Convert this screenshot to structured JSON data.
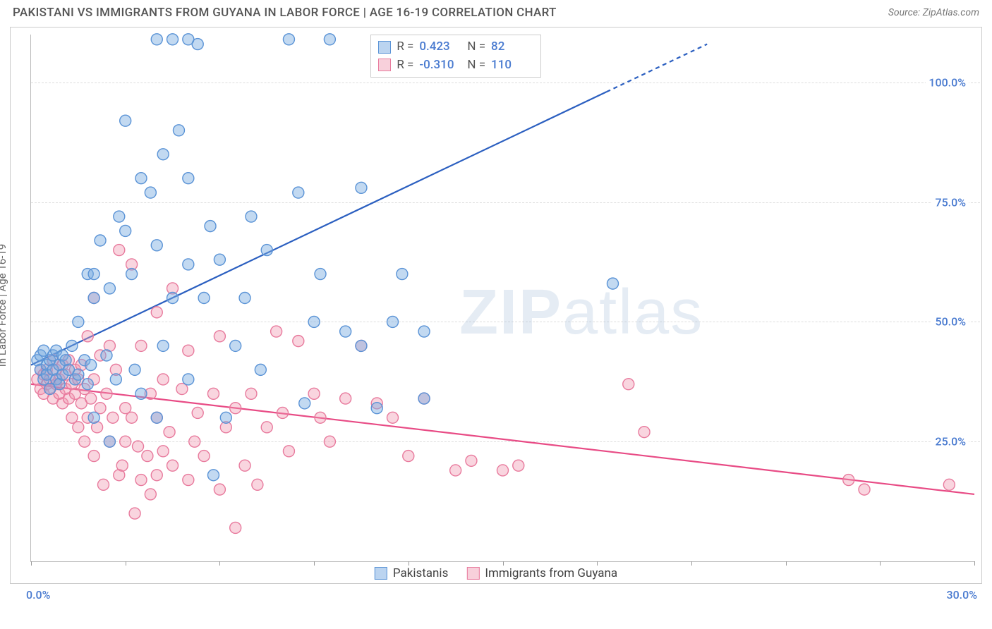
{
  "header": {
    "title": "PAKISTANI VS IMMIGRANTS FROM GUYANA IN LABOR FORCE | AGE 16-19 CORRELATION CHART",
    "source": "Source: ZipAtlas.com"
  },
  "watermark": {
    "part1": "ZIP",
    "part2": "atlas"
  },
  "chart": {
    "type": "scatter",
    "y_axis_label": "In Labor Force | Age 16-19",
    "xlim": [
      0,
      30
    ],
    "ylim": [
      0,
      110
    ],
    "x_tick_positions": [
      0,
      3,
      6,
      9,
      12,
      15,
      18,
      21,
      24,
      27,
      30
    ],
    "y_gridlines": [
      25,
      50,
      75,
      100
    ],
    "y_tick_labels": [
      "25.0%",
      "50.0%",
      "75.0%",
      "100.0%"
    ],
    "x_min_label": "0.0%",
    "x_max_label": "30.0%",
    "background_color": "#ffffff",
    "grid_color": "#dddddd",
    "axis_color": "#bbbbbb",
    "label_color": "#4a7bd0",
    "marker_radius": 8,
    "marker_stroke_width": 1.4,
    "line_width": 2.2,
    "series": [
      {
        "name": "Pakistanis",
        "color_fill": "rgba(120,170,225,0.45)",
        "color_stroke": "#5a93d6",
        "line_color": "#2b5fc0",
        "R": "0.423",
        "N": "82",
        "regression": {
          "x1": 0,
          "y1": 41,
          "x2": 21.5,
          "y2": 108,
          "dash_from_x": 18.3
        },
        "points": [
          [
            0.2,
            42
          ],
          [
            0.3,
            40
          ],
          [
            0.3,
            43
          ],
          [
            0.4,
            38
          ],
          [
            0.4,
            44
          ],
          [
            0.5,
            41
          ],
          [
            0.5,
            39
          ],
          [
            0.6,
            42
          ],
          [
            0.6,
            36
          ],
          [
            0.7,
            43
          ],
          [
            0.7,
            40
          ],
          [
            0.8,
            38
          ],
          [
            0.8,
            44
          ],
          [
            0.9,
            41
          ],
          [
            0.9,
            37
          ],
          [
            1.0,
            43
          ],
          [
            1.0,
            39
          ],
          [
            1.1,
            42
          ],
          [
            1.2,
            40
          ],
          [
            1.3,
            45
          ],
          [
            1.4,
            38
          ],
          [
            1.5,
            50
          ],
          [
            1.5,
            39
          ],
          [
            1.7,
            42
          ],
          [
            1.8,
            37
          ],
          [
            1.8,
            60
          ],
          [
            1.9,
            41
          ],
          [
            2.0,
            55
          ],
          [
            2.0,
            30
          ],
          [
            2.0,
            60
          ],
          [
            2.2,
            67
          ],
          [
            2.4,
            43
          ],
          [
            2.5,
            57
          ],
          [
            2.5,
            25
          ],
          [
            2.7,
            38
          ],
          [
            2.8,
            72
          ],
          [
            3.0,
            92
          ],
          [
            3.0,
            69
          ],
          [
            3.2,
            60
          ],
          [
            3.3,
            40
          ],
          [
            3.5,
            80
          ],
          [
            3.5,
            35
          ],
          [
            3.8,
            77
          ],
          [
            4.0,
            66
          ],
          [
            4.0,
            30
          ],
          [
            4.2,
            85
          ],
          [
            4.2,
            45
          ],
          [
            4.5,
            109
          ],
          [
            4.5,
            55
          ],
          [
            4.7,
            90
          ],
          [
            5.0,
            62
          ],
          [
            5.0,
            80
          ],
          [
            5.0,
            38
          ],
          [
            5.3,
            108
          ],
          [
            5.5,
            55
          ],
          [
            5.7,
            70
          ],
          [
            5.8,
            18
          ],
          [
            6.0,
            63
          ],
          [
            6.2,
            30
          ],
          [
            6.5,
            45
          ],
          [
            6.8,
            55
          ],
          [
            7.0,
            72
          ],
          [
            7.3,
            40
          ],
          [
            7.5,
            65
          ],
          [
            8.2,
            109
          ],
          [
            8.5,
            77
          ],
          [
            8.7,
            33
          ],
          [
            9.0,
            50
          ],
          [
            9.2,
            60
          ],
          [
            9.5,
            109
          ],
          [
            10.0,
            48
          ],
          [
            10.5,
            45
          ],
          [
            10.5,
            78
          ],
          [
            11.0,
            32
          ],
          [
            11.5,
            50
          ],
          [
            11.8,
            60
          ],
          [
            12.5,
            48
          ],
          [
            12.5,
            34
          ],
          [
            18.5,
            58
          ],
          [
            4.0,
            109
          ],
          [
            5.0,
            109
          ]
        ]
      },
      {
        "name": "Immigrants from Guyana",
        "color_fill": "rgba(240,150,175,0.40)",
        "color_stroke": "#e87a9d",
        "line_color": "#e84b85",
        "R": "-0.310",
        "N": "110",
        "regression": {
          "x1": 0,
          "y1": 37,
          "x2": 30,
          "y2": 14
        },
        "points": [
          [
            0.2,
            38
          ],
          [
            0.3,
            40
          ],
          [
            0.3,
            36
          ],
          [
            0.4,
            39
          ],
          [
            0.4,
            35
          ],
          [
            0.5,
            37
          ],
          [
            0.5,
            40
          ],
          [
            0.6,
            36
          ],
          [
            0.6,
            38
          ],
          [
            0.7,
            42
          ],
          [
            0.7,
            34
          ],
          [
            0.8,
            37
          ],
          [
            0.8,
            40
          ],
          [
            0.9,
            35
          ],
          [
            0.9,
            38
          ],
          [
            1.0,
            41
          ],
          [
            1.0,
            33
          ],
          [
            1.1,
            36
          ],
          [
            1.1,
            39
          ],
          [
            1.2,
            42
          ],
          [
            1.2,
            34
          ],
          [
            1.3,
            37
          ],
          [
            1.3,
            30
          ],
          [
            1.4,
            40
          ],
          [
            1.4,
            35
          ],
          [
            1.5,
            38
          ],
          [
            1.5,
            28
          ],
          [
            1.6,
            41
          ],
          [
            1.6,
            33
          ],
          [
            1.7,
            36
          ],
          [
            1.7,
            25
          ],
          [
            1.8,
            47
          ],
          [
            1.8,
            30
          ],
          [
            1.9,
            34
          ],
          [
            2.0,
            38
          ],
          [
            2.0,
            22
          ],
          [
            2.0,
            55
          ],
          [
            2.1,
            28
          ],
          [
            2.2,
            32
          ],
          [
            2.2,
            43
          ],
          [
            2.3,
            16
          ],
          [
            2.4,
            35
          ],
          [
            2.5,
            25
          ],
          [
            2.5,
            45
          ],
          [
            2.6,
            30
          ],
          [
            2.7,
            40
          ],
          [
            2.8,
            18
          ],
          [
            2.8,
            65
          ],
          [
            2.9,
            20
          ],
          [
            3.0,
            32
          ],
          [
            3.0,
            25
          ],
          [
            3.2,
            30
          ],
          [
            3.2,
            62
          ],
          [
            3.3,
            10
          ],
          [
            3.4,
            24
          ],
          [
            3.5,
            17
          ],
          [
            3.5,
            45
          ],
          [
            3.7,
            22
          ],
          [
            3.8,
            35
          ],
          [
            3.8,
            14
          ],
          [
            4.0,
            18
          ],
          [
            4.0,
            52
          ],
          [
            4.0,
            30
          ],
          [
            4.2,
            23
          ],
          [
            4.2,
            38
          ],
          [
            4.4,
            27
          ],
          [
            4.5,
            20
          ],
          [
            4.5,
            57
          ],
          [
            4.8,
            36
          ],
          [
            5.0,
            17
          ],
          [
            5.0,
            44
          ],
          [
            5.2,
            25
          ],
          [
            5.3,
            31
          ],
          [
            5.5,
            22
          ],
          [
            5.8,
            35
          ],
          [
            6.0,
            15
          ],
          [
            6.0,
            47
          ],
          [
            6.2,
            28
          ],
          [
            6.5,
            32
          ],
          [
            6.5,
            7
          ],
          [
            6.8,
            20
          ],
          [
            7.0,
            35
          ],
          [
            7.2,
            16
          ],
          [
            7.5,
            28
          ],
          [
            7.8,
            48
          ],
          [
            8.0,
            31
          ],
          [
            8.2,
            23
          ],
          [
            8.5,
            46
          ],
          [
            9.0,
            35
          ],
          [
            9.2,
            30
          ],
          [
            9.5,
            25
          ],
          [
            10.0,
            34
          ],
          [
            10.5,
            45
          ],
          [
            11.0,
            33
          ],
          [
            11.5,
            30
          ],
          [
            12.0,
            22
          ],
          [
            12.5,
            34
          ],
          [
            13.5,
            19
          ],
          [
            14.0,
            21
          ],
          [
            15.0,
            19
          ],
          [
            15.5,
            20
          ],
          [
            19.0,
            37
          ],
          [
            19.5,
            27
          ],
          [
            26.0,
            17
          ],
          [
            26.5,
            15
          ],
          [
            29.2,
            16
          ]
        ]
      }
    ]
  },
  "legend_top": {
    "r_label": "R =",
    "n_label": "N ="
  },
  "legend_bottom": {
    "items": [
      "Pakistanis",
      "Immigrants from Guyana"
    ]
  }
}
